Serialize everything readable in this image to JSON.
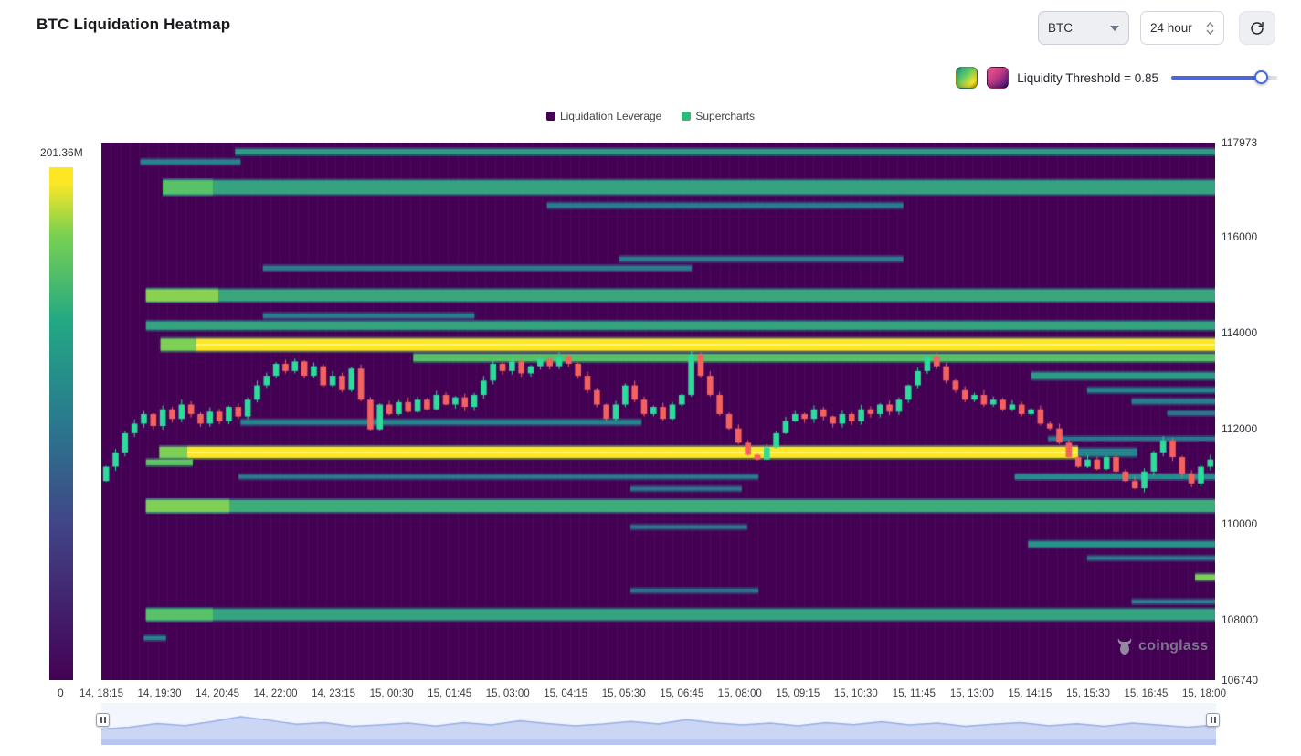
{
  "header": {
    "title": "BTC Liquidation Heatmap",
    "symbol": "BTC",
    "interval": "24 hour"
  },
  "controls": {
    "threshold_label": "Liquidity Threshold = 0.85",
    "threshold_value": 0.85,
    "slider_active_color": "#4968d6",
    "slider_rest_color": "#d9dce2",
    "palette_green": [
      "#21918c",
      "#5ec962",
      "#fde725",
      "#b8b300"
    ],
    "palette_pink": [
      "#ef5e8c",
      "#c13a82",
      "#6a1f85",
      "#2e0f54"
    ]
  },
  "legend": {
    "items": [
      {
        "label": "Liquidation Leverage",
        "color": "#440154"
      },
      {
        "label": "Supercharts",
        "color": "#35b779"
      }
    ]
  },
  "colorbar": {
    "max_label": "201.36M",
    "min_label": "0",
    "stops": [
      "#440154",
      "#414487",
      "#2a788e",
      "#22a884",
      "#7ad151",
      "#fde725"
    ]
  },
  "watermark": "coinglass",
  "chart_data": {
    "type": "heatmap",
    "title": "BTC Liquidation Heatmap",
    "legend": [
      "Liquidation Leverage",
      "Supercharts"
    ],
    "ylim": [
      106740,
      117973
    ],
    "y_ticks": [
      117973,
      116000,
      114000,
      112000,
      110000,
      108000,
      106740
    ],
    "x_ticks": [
      "14, 18:15",
      "14, 19:30",
      "14, 20:45",
      "14, 22:00",
      "14, 23:15",
      "15, 00:30",
      "15, 01:45",
      "15, 03:00",
      "15, 04:15",
      "15, 05:30",
      "15, 06:45",
      "15, 08:00",
      "15, 09:15",
      "15, 10:30",
      "15, 11:45",
      "15, 13:00",
      "15, 14:15",
      "15, 15:30",
      "15, 16:45",
      "15, 18:00"
    ],
    "colorbar_max": 201360000,
    "colorbar_min": 0,
    "colors": {
      "background_low": "#440154",
      "candle_up": "#2ddb9b",
      "candle_down": "#f4625f",
      "nav_fill": "#c7d3f3",
      "nav_stroke": "#97aee6",
      "nav_bar": "#b7c4ef"
    },
    "bands": [
      {
        "p": 117780,
        "x0": 0.12,
        "x1": 1.0,
        "w": 6,
        "v": 0.55
      },
      {
        "p": 117570,
        "x0": 0.035,
        "x1": 0.125,
        "w": 5,
        "v": 0.45
      },
      {
        "p": 117040,
        "x0": 0.055,
        "x1": 1.0,
        "w": 15,
        "v": 0.58
      },
      {
        "p": 117040,
        "x0": 0.055,
        "x1": 0.1,
        "w": 15,
        "v": 0.72
      },
      {
        "p": 116660,
        "x0": 0.4,
        "x1": 0.72,
        "w": 5,
        "v": 0.42
      },
      {
        "p": 115540,
        "x0": 0.465,
        "x1": 0.72,
        "w": 5,
        "v": 0.42
      },
      {
        "p": 115350,
        "x0": 0.145,
        "x1": 0.53,
        "w": 5,
        "v": 0.42
      },
      {
        "p": 114780,
        "x0": 0.04,
        "x1": 1.0,
        "w": 13,
        "v": 0.6
      },
      {
        "p": 114780,
        "x0": 0.04,
        "x1": 0.105,
        "w": 13,
        "v": 0.82
      },
      {
        "p": 114355,
        "x0": 0.145,
        "x1": 0.335,
        "w": 5,
        "v": 0.42
      },
      {
        "p": 114150,
        "x0": 0.04,
        "x1": 1.0,
        "w": 9,
        "v": 0.58
      },
      {
        "p": 113750,
        "x0": 0.053,
        "x1": 0.085,
        "w": 13,
        "v": 0.8
      },
      {
        "p": 113750,
        "x0": 0.085,
        "x1": 1.0,
        "w": 13,
        "v": 1.0
      },
      {
        "p": 113480,
        "x0": 0.28,
        "x1": 1.0,
        "w": 8,
        "v": 0.72
      },
      {
        "p": 113100,
        "x0": 0.835,
        "x1": 1.0,
        "w": 7,
        "v": 0.55
      },
      {
        "p": 112800,
        "x0": 0.885,
        "x1": 1.0,
        "w": 5,
        "v": 0.45
      },
      {
        "p": 112565,
        "x0": 0.925,
        "x1": 1.0,
        "w": 5,
        "v": 0.42
      },
      {
        "p": 112320,
        "x0": 0.957,
        "x1": 1.0,
        "w": 4,
        "v": 0.4
      },
      {
        "p": 112130,
        "x0": 0.125,
        "x1": 0.485,
        "w": 5,
        "v": 0.45
      },
      {
        "p": 111785,
        "x0": 0.85,
        "x1": 1.0,
        "w": 4,
        "v": 0.4
      },
      {
        "p": 111500,
        "x0": 0.052,
        "x1": 0.077,
        "w": 12,
        "v": 0.8
      },
      {
        "p": 111500,
        "x0": 0.077,
        "x1": 0.877,
        "w": 12,
        "v": 1.0
      },
      {
        "p": 111500,
        "x0": 0.877,
        "x1": 0.93,
        "w": 8,
        "v": 0.45
      },
      {
        "p": 111290,
        "x0": 0.04,
        "x1": 0.082,
        "w": 6,
        "v": 0.75
      },
      {
        "p": 110990,
        "x0": 0.123,
        "x1": 0.59,
        "w": 4,
        "v": 0.42
      },
      {
        "p": 110990,
        "x0": 0.82,
        "x1": 1.0,
        "w": 5,
        "v": 0.5
      },
      {
        "p": 110740,
        "x0": 0.475,
        "x1": 0.575,
        "w": 4,
        "v": 0.4
      },
      {
        "p": 110380,
        "x0": 0.04,
        "x1": 1.0,
        "w": 13,
        "v": 0.62
      },
      {
        "p": 110380,
        "x0": 0.04,
        "x1": 0.115,
        "w": 13,
        "v": 0.8
      },
      {
        "p": 109940,
        "x0": 0.475,
        "x1": 0.58,
        "w": 4,
        "v": 0.4
      },
      {
        "p": 109580,
        "x0": 0.832,
        "x1": 1.0,
        "w": 6,
        "v": 0.52
      },
      {
        "p": 109290,
        "x0": 0.885,
        "x1": 1.0,
        "w": 4,
        "v": 0.42
      },
      {
        "p": 108890,
        "x0": 0.982,
        "x1": 1.0,
        "w": 6,
        "v": 0.8
      },
      {
        "p": 108610,
        "x0": 0.475,
        "x1": 0.59,
        "w": 4,
        "v": 0.4
      },
      {
        "p": 108380,
        "x0": 0.925,
        "x1": 1.0,
        "w": 4,
        "v": 0.42
      },
      {
        "p": 108110,
        "x0": 0.04,
        "x1": 1.0,
        "w": 12,
        "v": 0.58
      },
      {
        "p": 108110,
        "x0": 0.04,
        "x1": 0.1,
        "w": 12,
        "v": 0.72
      },
      {
        "p": 107620,
        "x0": 0.038,
        "x1": 0.058,
        "w": 4,
        "v": 0.45
      }
    ],
    "price_path": [
      110900,
      111200,
      111500,
      111900,
      112100,
      112300,
      112050,
      112400,
      112200,
      112500,
      112300,
      112100,
      112350,
      112150,
      112450,
      112250,
      112600,
      112900,
      113100,
      113350,
      113200,
      113400,
      113100,
      113300,
      112900,
      113100,
      112800,
      113250,
      112600,
      111980,
      112500,
      112300,
      112550,
      112350,
      112600,
      112400,
      112700,
      112500,
      112650,
      112450,
      112700,
      113000,
      113350,
      113200,
      113400,
      113150,
      113300,
      113450,
      113300,
      113500,
      113350,
      113100,
      112800,
      112500,
      112200,
      112500,
      112900,
      112600,
      112300,
      112450,
      112200,
      112500,
      112700,
      113540,
      113100,
      112700,
      112300,
      112000,
      111700,
      111450,
      111350,
      111600,
      111900,
      112150,
      112300,
      112200,
      112400,
      112250,
      112100,
      112300,
      112150,
      112400,
      112300,
      112500,
      112350,
      112600,
      112900,
      113200,
      113500,
      113300,
      113000,
      112800,
      112600,
      112700,
      112500,
      112600,
      112400,
      112500,
      112300,
      112400,
      112100,
      112000,
      111700,
      111400,
      111200,
      111350,
      111150,
      111400,
      111100,
      110900,
      110750,
      111100,
      111500,
      111750,
      111400,
      111050,
      110850,
      111200,
      111350
    ],
    "nav_path": [
      0.35,
      0.42,
      0.55,
      0.48,
      0.62,
      0.78,
      0.66,
      0.52,
      0.58,
      0.45,
      0.5,
      0.56,
      0.46,
      0.58,
      0.5,
      0.64,
      0.55,
      0.47,
      0.53,
      0.62,
      0.53,
      0.68,
      0.57,
      0.5,
      0.56,
      0.47,
      0.58,
      0.51,
      0.61,
      0.5,
      0.56,
      0.45,
      0.52,
      0.58,
      0.47,
      0.54,
      0.45,
      0.56,
      0.49,
      0.42,
      0.5
    ]
  }
}
